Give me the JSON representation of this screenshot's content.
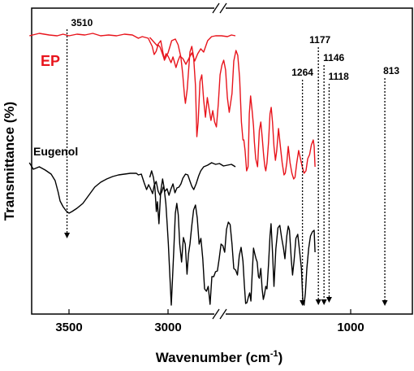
{
  "chart_data": {
    "type": "line",
    "xlabel_main": "Wavenumber (cm",
    "xlabel_sup": "-1",
    "xlabel_close": ")",
    "ylabel": "Transmittance (%)",
    "x_reversed": true,
    "axis_break": "between 2650 and 2100",
    "xticks": [
      "3500",
      "3000",
      "1000"
    ],
    "series": [
      {
        "name": "EP",
        "color": "#e8141c",
        "points": [
          [
            3700,
            44
          ],
          [
            3650,
            41
          ],
          [
            3600,
            43
          ],
          [
            3560,
            44
          ],
          [
            3530,
            42
          ],
          [
            3500,
            44
          ],
          [
            3460,
            42
          ],
          [
            3420,
            43
          ],
          [
            3380,
            41
          ],
          [
            3340,
            44
          ],
          [
            3300,
            43
          ],
          [
            3260,
            44
          ],
          [
            3220,
            42
          ],
          [
            3180,
            43
          ],
          [
            3150,
            47
          ],
          [
            3130,
            45
          ],
          [
            3100,
            47
          ],
          [
            3080,
            57
          ],
          [
            3070,
            67
          ],
          [
            3060,
            63
          ],
          [
            3050,
            55
          ],
          [
            3040,
            58
          ],
          [
            3030,
            65
          ],
          [
            3020,
            72
          ],
          [
            3010,
            66
          ],
          [
            3000,
            69
          ],
          [
            2985,
            77
          ],
          [
            2975,
            70
          ],
          [
            2960,
            83
          ],
          [
            2950,
            75
          ],
          [
            2940,
            69
          ],
          [
            2925,
            72
          ],
          [
            2910,
            79
          ],
          [
            2895,
            72
          ],
          [
            2880,
            65
          ],
          [
            2865,
            75
          ],
          [
            2850,
            66
          ],
          [
            2835,
            60
          ],
          [
            2820,
            64
          ],
          [
            2800,
            50
          ],
          [
            2780,
            45
          ],
          [
            2760,
            44
          ],
          [
            2730,
            44
          ],
          [
            2700,
            45
          ],
          [
            2680,
            43
          ],
          [
            2660,
            44
          ],
          [
            2100,
            46
          ],
          [
            2060,
            56
          ],
          [
            2040,
            50
          ],
          [
            2020,
            74
          ],
          [
            2000,
            65
          ],
          [
            1980,
            50
          ],
          [
            1960,
            48
          ],
          [
            1945,
            55
          ],
          [
            1930,
            70
          ],
          [
            1920,
            90
          ],
          [
            1910,
            118
          ],
          [
            1905,
            127
          ],
          [
            1895,
            110
          ],
          [
            1880,
            64
          ],
          [
            1870,
            57
          ],
          [
            1860,
            70
          ],
          [
            1850,
            105
          ],
          [
            1842,
            168
          ],
          [
            1835,
            150
          ],
          [
            1825,
            100
          ],
          [
            1815,
            92
          ],
          [
            1805,
            123
          ],
          [
            1795,
            144
          ],
          [
            1785,
            120
          ],
          [
            1775,
            134
          ],
          [
            1765,
            148
          ],
          [
            1755,
            136
          ],
          [
            1745,
            150
          ],
          [
            1735,
            156
          ],
          [
            1725,
            128
          ],
          [
            1715,
            92
          ],
          [
            1705,
            80
          ],
          [
            1695,
            74
          ],
          [
            1685,
            86
          ],
          [
            1675,
            120
          ],
          [
            1665,
            138
          ],
          [
            1650,
            115
          ],
          [
            1640,
            75
          ],
          [
            1628,
            62
          ],
          [
            1618,
            68
          ],
          [
            1608,
            96
          ],
          [
            1598,
            150
          ],
          [
            1590,
            172
          ],
          [
            1585,
            172
          ],
          [
            1578,
            185
          ],
          [
            1570,
            210
          ],
          [
            1562,
            205
          ],
          [
            1555,
            140
          ],
          [
            1548,
            118
          ],
          [
            1540,
            135
          ],
          [
            1532,
            155
          ],
          [
            1527,
            175
          ],
          [
            1520,
            195
          ],
          [
            1510,
            205
          ],
          [
            1500,
            160
          ],
          [
            1492,
            150
          ],
          [
            1484,
            170
          ],
          [
            1477,
            190
          ],
          [
            1470,
            205
          ],
          [
            1465,
            210
          ],
          [
            1458,
            200
          ],
          [
            1450,
            175
          ],
          [
            1442,
            140
          ],
          [
            1435,
            132
          ],
          [
            1428,
            150
          ],
          [
            1420,
            180
          ],
          [
            1412,
            197
          ],
          [
            1405,
            185
          ],
          [
            1395,
            158
          ],
          [
            1385,
            180
          ],
          [
            1375,
            200
          ],
          [
            1365,
            215
          ],
          [
            1358,
            213
          ],
          [
            1350,
            200
          ],
          [
            1342,
            180
          ],
          [
            1332,
            200
          ],
          [
            1322,
            213
          ],
          [
            1312,
            220
          ],
          [
            1305,
            218
          ],
          [
            1295,
            200
          ],
          [
            1285,
            185
          ],
          [
            1275,
            195
          ],
          [
            1265,
            205
          ],
          [
            1255,
            213
          ],
          [
            1245,
            210
          ],
          [
            1235,
            195
          ],
          [
            1225,
            190
          ],
          [
            1215,
            178
          ],
          [
            1205,
            172
          ],
          [
            1200,
            180
          ],
          [
            1195,
            205
          ]
        ]
      },
      {
        "name": "Eugenol",
        "color": "#000000",
        "points": [
          [
            3700,
            200
          ],
          [
            3680,
            208
          ],
          [
            3650,
            205
          ],
          [
            3620,
            209
          ],
          [
            3590,
            214
          ],
          [
            3570,
            222
          ],
          [
            3555,
            236
          ],
          [
            3545,
            247
          ],
          [
            3530,
            254
          ],
          [
            3515,
            259
          ],
          [
            3500,
            262
          ],
          [
            3485,
            260
          ],
          [
            3460,
            256
          ],
          [
            3430,
            250
          ],
          [
            3400,
            240
          ],
          [
            3370,
            230
          ],
          [
            3340,
            224
          ],
          [
            3310,
            220
          ],
          [
            3280,
            217
          ],
          [
            3250,
            215
          ],
          [
            3220,
            214
          ],
          [
            3190,
            213
          ],
          [
            3160,
            213
          ],
          [
            3150,
            215
          ],
          [
            3135,
            214
          ],
          [
            3120,
            225
          ],
          [
            3108,
            233
          ],
          [
            3098,
            227
          ],
          [
            3088,
            232
          ],
          [
            3078,
            238
          ],
          [
            3070,
            228
          ],
          [
            3060,
            223
          ],
          [
            3050,
            235
          ],
          [
            3040,
            240
          ],
          [
            3032,
            236
          ],
          [
            3024,
            230
          ],
          [
            3015,
            235
          ],
          [
            3005,
            232
          ],
          [
            2995,
            240
          ],
          [
            2985,
            232
          ],
          [
            2975,
            226
          ],
          [
            2965,
            237
          ],
          [
            2955,
            231
          ],
          [
            2945,
            230
          ],
          [
            2935,
            226
          ],
          [
            2925,
            219
          ],
          [
            2912,
            214
          ],
          [
            2900,
            215
          ],
          [
            2890,
            222
          ],
          [
            2880,
            229
          ],
          [
            2870,
            233
          ],
          [
            2858,
            226
          ],
          [
            2845,
            216
          ],
          [
            2835,
            210
          ],
          [
            2820,
            205
          ],
          [
            2800,
            203
          ],
          [
            2780,
            200
          ],
          [
            2760,
            202
          ],
          [
            2740,
            201
          ],
          [
            2720,
            204
          ],
          [
            2700,
            203
          ],
          [
            2680,
            202
          ],
          [
            2660,
            205
          ],
          [
            2100,
            218
          ],
          [
            2090,
            210
          ],
          [
            2080,
            218
          ],
          [
            2072,
            230
          ],
          [
            2064,
            260
          ],
          [
            2058,
            248
          ],
          [
            2050,
            275
          ],
          [
            2040,
            235
          ],
          [
            2030,
            220
          ],
          [
            2022,
            230
          ],
          [
            2012,
            250
          ],
          [
            2005,
            275
          ],
          [
            1998,
            300
          ],
          [
            1990,
            340
          ],
          [
            1982,
            375
          ],
          [
            1976,
            345
          ],
          [
            1968,
            305
          ],
          [
            1960,
            262
          ],
          [
            1952,
            250
          ],
          [
            1944,
            264
          ],
          [
            1936,
            300
          ],
          [
            1926,
            322
          ],
          [
            1916,
            292
          ],
          [
            1906,
            300
          ],
          [
            1896,
            337
          ],
          [
            1888,
            312
          ],
          [
            1880,
            300
          ],
          [
            1870,
            277
          ],
          [
            1860,
            258
          ],
          [
            1850,
            252
          ],
          [
            1840,
            268
          ],
          [
            1830,
            300
          ],
          [
            1820,
            293
          ],
          [
            1810,
            318
          ],
          [
            1800,
            355
          ],
          [
            1790,
            358
          ],
          [
            1780,
            352
          ],
          [
            1770,
            374
          ],
          [
            1760,
            340
          ],
          [
            1750,
            340
          ],
          [
            1740,
            334
          ],
          [
            1730,
            333
          ],
          [
            1720,
            318
          ],
          [
            1710,
            300
          ],
          [
            1700,
            302
          ],
          [
            1690,
            310
          ],
          [
            1680,
            282
          ],
          [
            1670,
            273
          ],
          [
            1660,
            276
          ],
          [
            1650,
            300
          ],
          [
            1640,
            330
          ],
          [
            1630,
            332
          ],
          [
            1620,
            338
          ],
          [
            1610,
            314
          ],
          [
            1600,
            304
          ],
          [
            1590,
            321
          ],
          [
            1582,
            350
          ],
          [
            1575,
            373
          ],
          [
            1568,
            372
          ],
          [
            1560,
            365
          ],
          [
            1553,
            360
          ],
          [
            1546,
            370
          ],
          [
            1540,
            340
          ],
          [
            1532,
            305
          ],
          [
            1525,
            312
          ],
          [
            1518,
            318
          ],
          [
            1512,
            322
          ],
          [
            1505,
            340
          ],
          [
            1500,
            342
          ],
          [
            1492,
            330
          ],
          [
            1485,
            355
          ],
          [
            1478,
            368
          ],
          [
            1472,
            362
          ],
          [
            1465,
            352
          ],
          [
            1458,
            355
          ],
          [
            1450,
            325
          ],
          [
            1442,
            290
          ],
          [
            1436,
            275
          ],
          [
            1428,
            310
          ],
          [
            1420,
            352
          ],
          [
            1410,
            306
          ],
          [
            1398,
            280
          ],
          [
            1388,
            277
          ],
          [
            1378,
            292
          ],
          [
            1368,
            305
          ],
          [
            1360,
            318
          ],
          [
            1350,
            290
          ],
          [
            1342,
            278
          ],
          [
            1335,
            283
          ],
          [
            1325,
            320
          ],
          [
            1318,
            338
          ],
          [
            1310,
            320
          ],
          [
            1300,
            293
          ],
          [
            1290,
            288
          ],
          [
            1280,
            308
          ],
          [
            1270,
            330
          ],
          [
            1262,
            370
          ],
          [
            1255,
            375
          ],
          [
            1248,
            360
          ],
          [
            1240,
            330
          ],
          [
            1230,
            305
          ],
          [
            1220,
            290
          ],
          [
            1210,
            285
          ],
          [
            1200,
            283
          ],
          [
            1195,
            310
          ]
        ]
      }
    ],
    "series_labels": {
      "ep": "EP",
      "eugenol": "Eugenol"
    },
    "annotations": [
      {
        "label": "3510",
        "x": 3510
      },
      {
        "label": "1264",
        "x": 1264
      },
      {
        "label": "1177",
        "x": 1177
      },
      {
        "label": "1146",
        "x": 1146
      },
      {
        "label": "1118",
        "x": 1118
      },
      {
        "label": "813",
        "x": 813
      }
    ]
  }
}
